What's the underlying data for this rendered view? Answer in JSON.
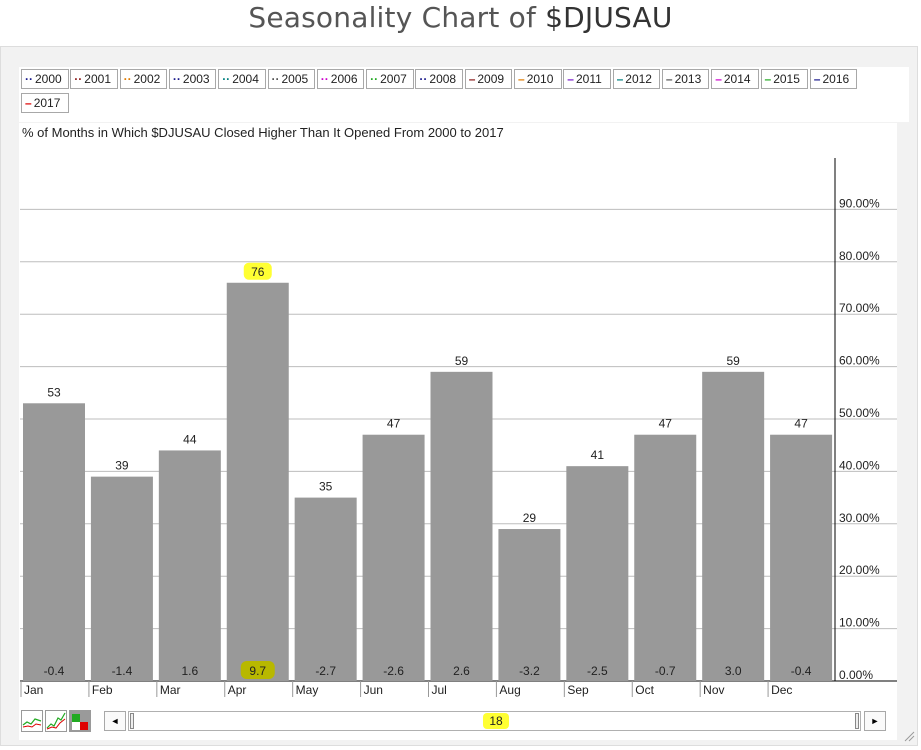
{
  "page": {
    "title_prefix": "Seasonality Chart of ",
    "symbol": "$DJUSAU"
  },
  "legend": [
    {
      "label": "2000",
      "color": "#1a1a8c",
      "style": "dotted"
    },
    {
      "label": "2001",
      "color": "#8b1a1a",
      "style": "dotted"
    },
    {
      "label": "2002",
      "color": "#e07b00",
      "style": "dotted"
    },
    {
      "label": "2003",
      "color": "#1a1a8c",
      "style": "dotted"
    },
    {
      "label": "2004",
      "color": "#008080",
      "style": "dotted"
    },
    {
      "label": "2005",
      "color": "#555555",
      "style": "dotted"
    },
    {
      "label": "2006",
      "color": "#cc00cc",
      "style": "dotted"
    },
    {
      "label": "2007",
      "color": "#22aa22",
      "style": "dotted"
    },
    {
      "label": "2008",
      "color": "#1a1a8c",
      "style": "dotted"
    },
    {
      "label": "2009",
      "color": "#8b1a1a",
      "style": "solid"
    },
    {
      "label": "2010",
      "color": "#e07b00",
      "style": "solid"
    },
    {
      "label": "2011",
      "color": "#7a1acc",
      "style": "solid"
    },
    {
      "label": "2012",
      "color": "#008080",
      "style": "solid"
    },
    {
      "label": "2013",
      "color": "#555555",
      "style": "solid"
    },
    {
      "label": "2014",
      "color": "#cc00cc",
      "style": "solid"
    },
    {
      "label": "2015",
      "color": "#22aa22",
      "style": "solid"
    },
    {
      "label": "2016",
      "color": "#1a1a8c",
      "style": "solid"
    },
    {
      "label": "2017",
      "color": "#dd0000",
      "style": "solid"
    }
  ],
  "chart_data": {
    "type": "bar",
    "subtitle": "% of Months in Which $DJUSAU Closed Higher Than It Opened From 2000 to 2017",
    "categories": [
      "Jan",
      "Feb",
      "Mar",
      "Apr",
      "May",
      "Jun",
      "Jul",
      "Aug",
      "Sep",
      "Oct",
      "Nov",
      "Dec"
    ],
    "values": [
      53,
      39,
      44,
      76,
      35,
      47,
      59,
      29,
      41,
      47,
      59,
      47
    ],
    "avg_change_labels": [
      "-0.4",
      "-1.4",
      "1.6",
      "9.7",
      "-2.7",
      "-2.6",
      "2.6",
      "-3.2",
      "-2.5",
      "-0.7",
      "3.0",
      "-0.4"
    ],
    "y_ticks": [
      "0.00%",
      "10.00%",
      "20.00%",
      "30.00%",
      "40.00%",
      "50.00%",
      "60.00%",
      "70.00%",
      "80.00%",
      "90.00%"
    ],
    "ylim": [
      0,
      100
    ],
    "grid": true,
    "y_axis_side": "right",
    "bar_color": "#999999",
    "highlight_color": "#ffff33",
    "highlighted_category": "Apr"
  },
  "scrollbar": {
    "value": "18",
    "left_arrow": "◄",
    "right_arrow": "►"
  },
  "toolbar": {
    "icons": [
      "line-chart-icon",
      "multi-line-chart-icon",
      "bar-chart-icon"
    ]
  }
}
